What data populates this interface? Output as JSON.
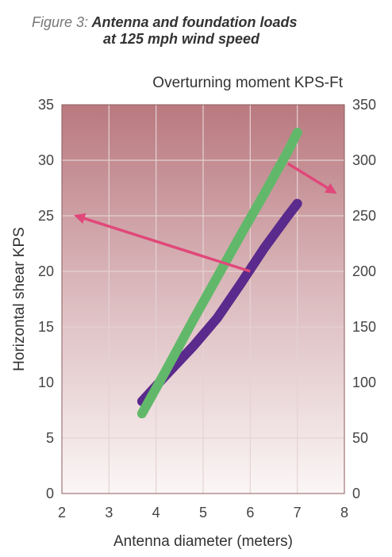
{
  "figure": {
    "caption_lead": "Figure 3:",
    "caption_line1": "Antenna and foundation loads",
    "caption_line2": "at 125 mph wind speed"
  },
  "chart_data": {
    "type": "line",
    "x_label": "Antenna diameter (meters)",
    "y_label_left": "Horizontal shear KPS",
    "y_label_right": "Overturning moment KPS-Ft",
    "xlim": [
      2,
      8
    ],
    "ylim_left": [
      0,
      35
    ],
    "ylim_right": [
      0,
      350
    ],
    "x_ticks": [
      "2",
      "3",
      "4",
      "5",
      "6",
      "7",
      "8"
    ],
    "y_ticks_left": [
      "0",
      "5",
      "10",
      "15",
      "20",
      "25",
      "30",
      "35"
    ],
    "y_ticks_right": [
      "0",
      "50",
      "100",
      "150",
      "200",
      "250",
      "300",
      "350"
    ],
    "grid": true,
    "series": [
      {
        "axis": "left",
        "color": "#5a2a8c",
        "x": [
          3.7,
          4.2,
          4.8,
          5.3,
          5.8,
          6.3,
          6.8,
          7.0
        ],
        "y": [
          8.3,
          10.6,
          13.3,
          15.8,
          18.9,
          22.1,
          25.0,
          26.1
        ]
      },
      {
        "axis": "right",
        "color": "#62b86a",
        "x": [
          3.7,
          4.2,
          4.8,
          5.3,
          5.8,
          6.3,
          6.8,
          7.0
        ],
        "y": [
          72,
          110,
          157,
          195,
          233,
          270,
          308,
          325
        ]
      }
    ],
    "annotations": [
      {
        "type": "arrow",
        "from": [
          6.0,
          20.0
        ],
        "to": [
          2.3,
          25.0
        ],
        "axis": "left",
        "color": "#e0487a"
      },
      {
        "type": "arrow",
        "from": [
          6.8,
          297
        ],
        "to": [
          7.8,
          271
        ],
        "axis": "right",
        "color": "#e0487a"
      }
    ],
    "colors": {
      "plot_top": "#b9797f",
      "plot_bottom": "#fbf6f6",
      "grid": "#e5d2d4"
    }
  }
}
